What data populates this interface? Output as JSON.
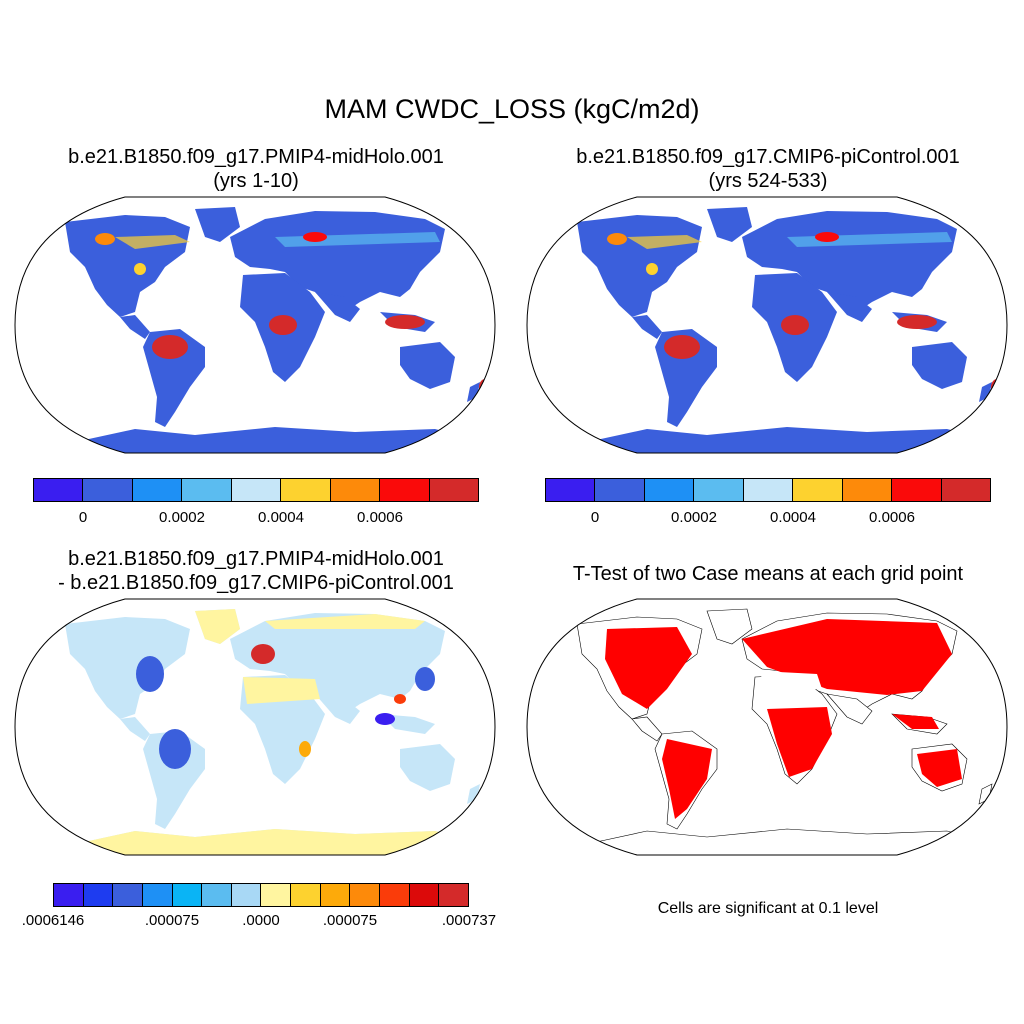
{
  "title": "MAM CWDC_LOSS (kgC/m2d)",
  "panels": [
    {
      "id": "a",
      "line1": "b.e21.B1850.f09_g17.PMIP4-midHolo.001",
      "line2": "(yrs 1-10)"
    },
    {
      "id": "b",
      "line1": "b.e21.B1850.f09_g17.CMIP6-piControl.001",
      "line2": "(yrs 524-533)"
    },
    {
      "id": "c",
      "line1": "b.e21.B1850.f09_g17.PMIP4-midHolo.001",
      "line2": "- b.e21.B1850.f09_g17.CMIP6-piControl.001"
    },
    {
      "id": "d",
      "line1": "T-Test of two Case means at each grid point",
      "line2": ""
    }
  ],
  "colorbars": {
    "top": {
      "colors": [
        "#3a1ef0",
        "#3b5fdc",
        "#1e90f5",
        "#5bbcf0",
        "#c6e6f8",
        "#fdd22f",
        "#fd8a0a",
        "#fa0a0a",
        "#d42a2a"
      ],
      "labels": [
        "0",
        "0.0002",
        "0.0004",
        "0.0006"
      ]
    },
    "diff": {
      "colors": [
        "#3a1ef0",
        "#1e3cf0",
        "#3b5fdc",
        "#1e90f5",
        "#0ab4f5",
        "#5bbcf0",
        "#a8d8f5",
        "#fff5a0",
        "#fdd22f",
        "#fdaa0a",
        "#fd8a0a",
        "#fa3c0a",
        "#dc0a0a",
        "#d42a2a"
      ],
      "labels": [
        ".0006146",
        ".000075",
        ".0000",
        ".000075",
        ".000737"
      ]
    }
  },
  "ttest_note": "Cells are significant at 0.1 level",
  "map_colors": {
    "land_mean": "#3b5fdc",
    "tropics_mean": "#d42a2a",
    "hotspot_mean": "#fdd22f",
    "land_diff": "#c6e6f8",
    "desert_diff": "#fff5a0",
    "neg_diff": "#3b5fdc",
    "pos_diff": "#d42a2a",
    "significant": "#ff0000"
  }
}
